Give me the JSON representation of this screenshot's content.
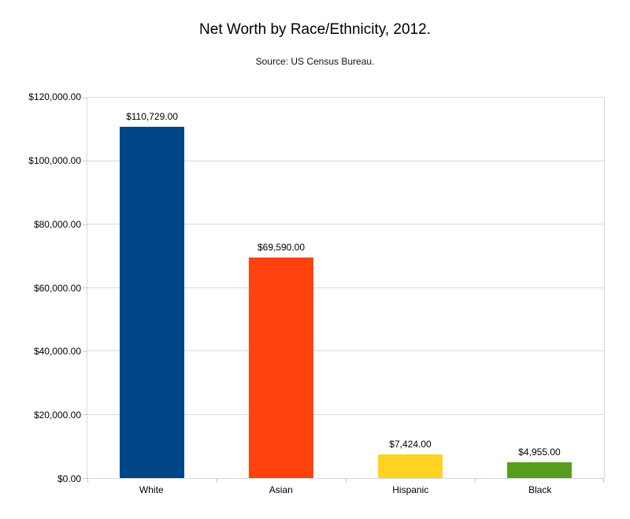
{
  "header": {
    "title": "Net Worth by Race/Ethnicity, 2012.",
    "subtitle": "Source: US Census Bureau."
  },
  "chart_data": {
    "type": "bar",
    "title": "Net Worth by Race/Ethnicity, 2012.",
    "subtitle": "Source: US Census Bureau.",
    "categories": [
      "White",
      "Asian",
      "Hispanic",
      "Black"
    ],
    "values": [
      110729,
      69590,
      7424,
      4955
    ],
    "value_labels": [
      "$110,729.00",
      "$69,590.00",
      "$7,424.00",
      "$4,955.00"
    ],
    "bar_colors": [
      "#004586",
      "#FF420E",
      "#FFD320",
      "#579D1C"
    ],
    "xlabel": "",
    "ylabel": "",
    "ylim": [
      0,
      120000
    ],
    "y_ticks": [
      {
        "value": 0,
        "label": "$0.00"
      },
      {
        "value": 20000,
        "label": "$20,000.00"
      },
      {
        "value": 40000,
        "label": "$40,000.00"
      },
      {
        "value": 60000,
        "label": "$60,000.00"
      },
      {
        "value": 80000,
        "label": "$80,000.00"
      },
      {
        "value": 100000,
        "label": "$100,000.00"
      },
      {
        "value": 120000,
        "label": "$120,000.00"
      }
    ],
    "grid": "horizontal",
    "legend": "none",
    "gridline_color": "#d9d9d9"
  }
}
